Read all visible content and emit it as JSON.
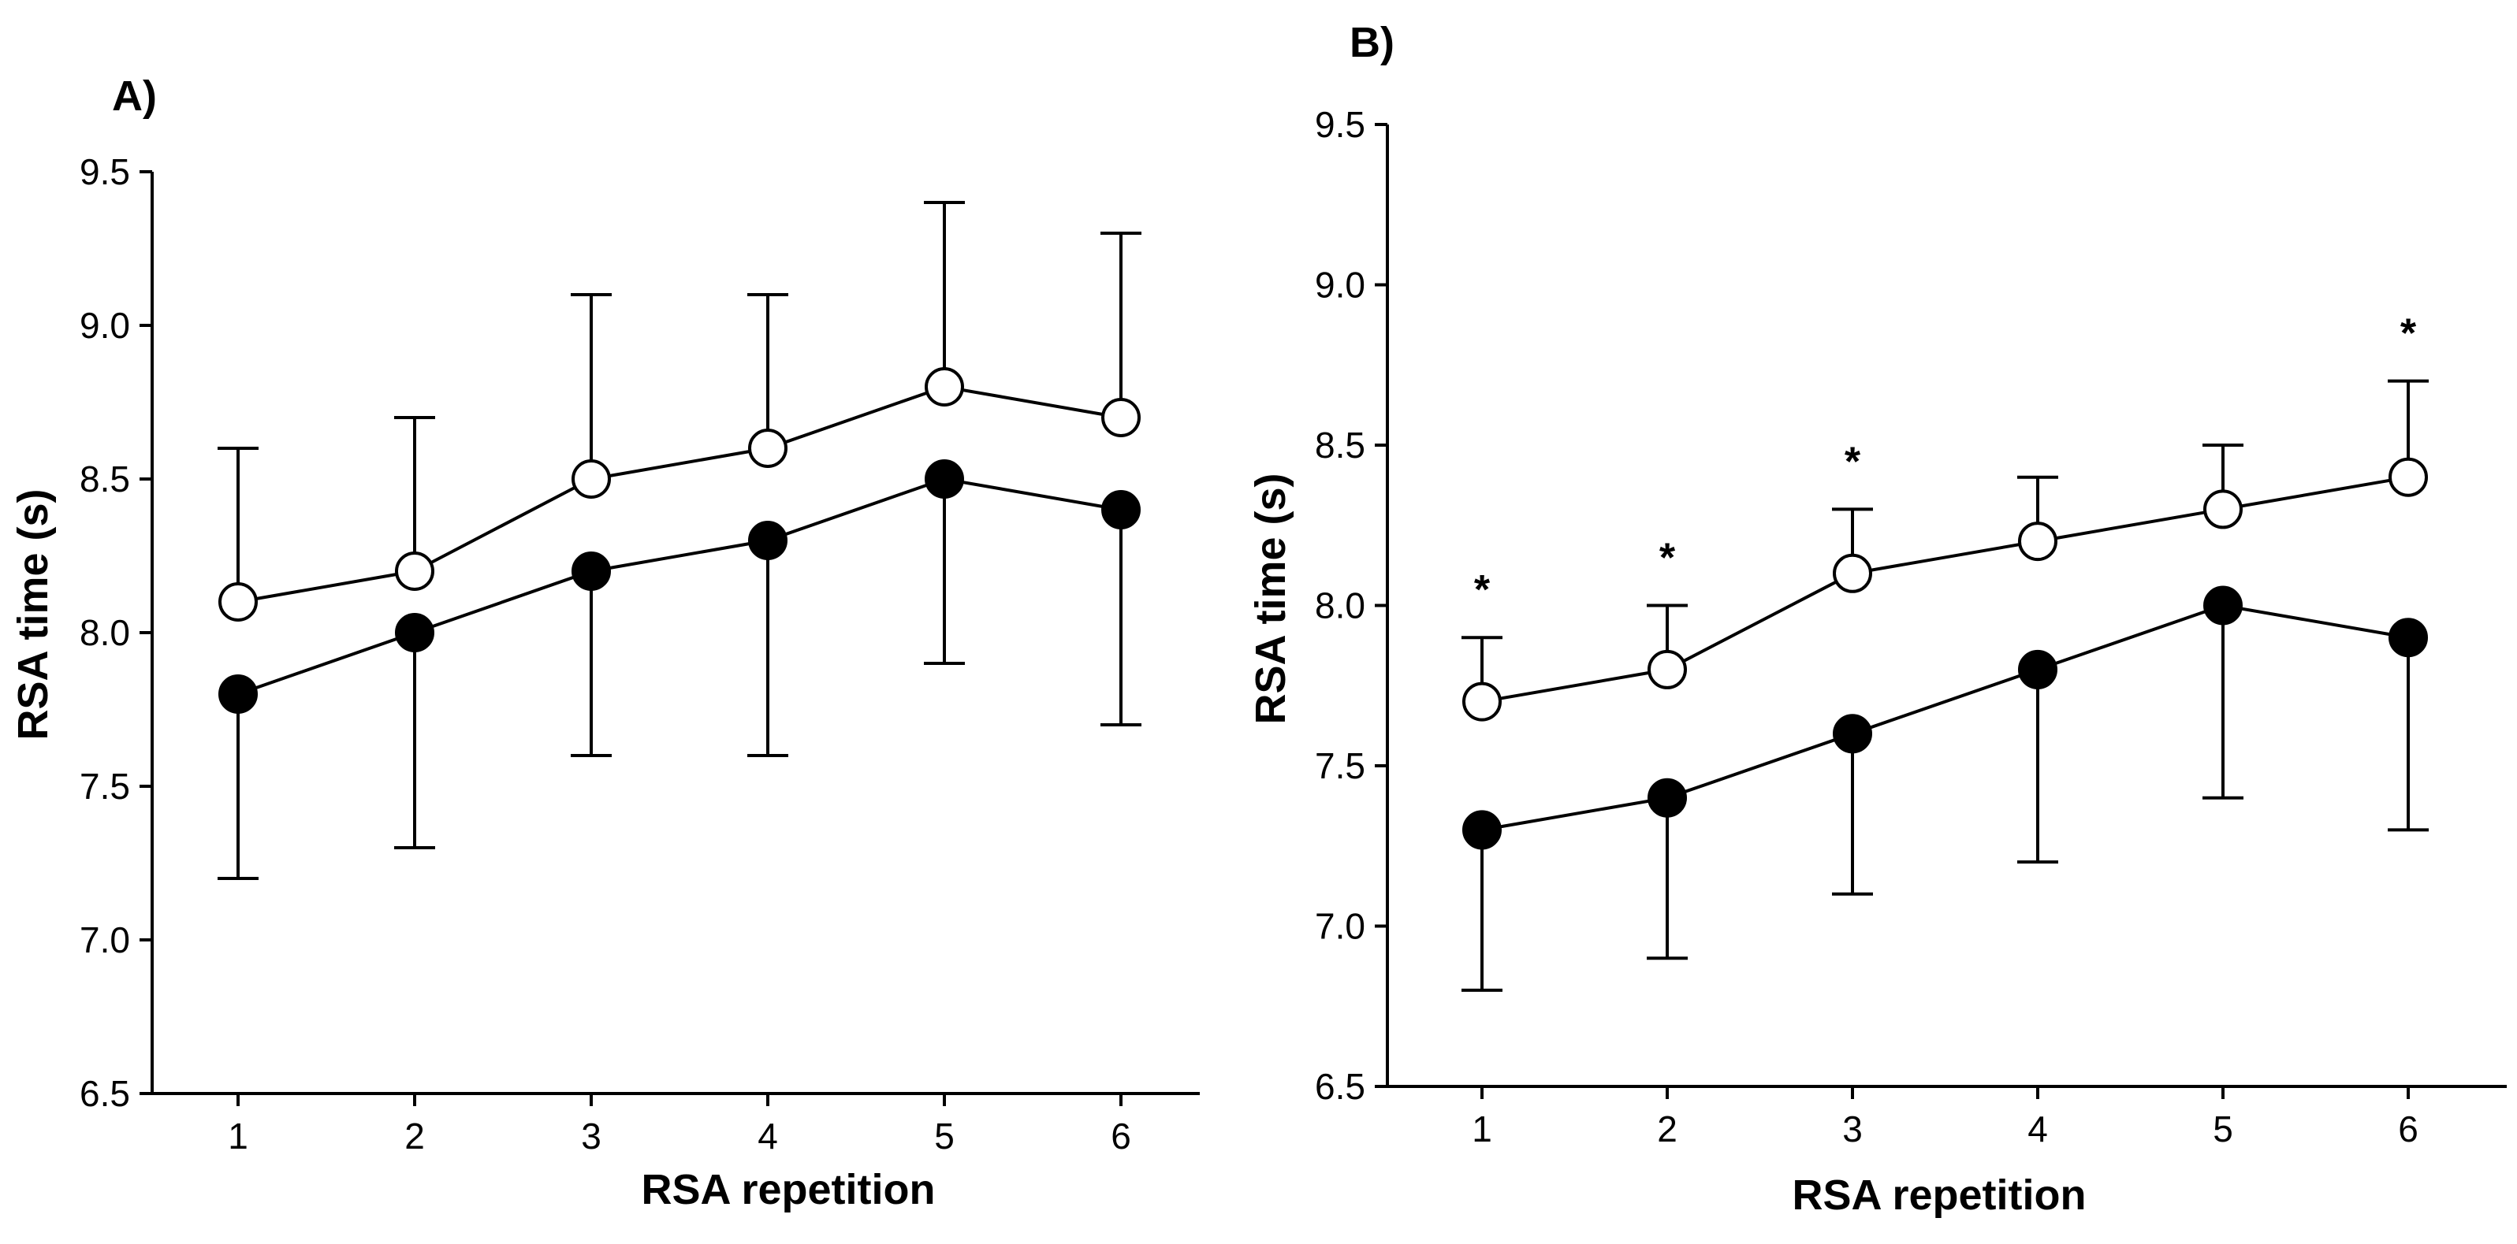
{
  "chart_data": [
    {
      "type": "line",
      "panel_label": "A)",
      "xlabel": "RSA repetition",
      "ylabel": "RSA time (s)",
      "x": [
        1,
        2,
        3,
        4,
        5,
        6
      ],
      "ylim": [
        6.5,
        9.5
      ],
      "yticks": [
        "6.5",
        "7.0",
        "7.5",
        "8.0",
        "8.5",
        "9.0",
        "9.5"
      ],
      "xticks": [
        "1",
        "2",
        "3",
        "4",
        "5",
        "6"
      ],
      "grid": false,
      "series": [
        {
          "name": "open circles",
          "marker": "open",
          "values": [
            8.1,
            8.2,
            8.5,
            8.6,
            8.8,
            8.7
          ],
          "error_upper": [
            8.6,
            8.7,
            9.1,
            9.1,
            9.4,
            9.3
          ]
        },
        {
          "name": "filled circles",
          "marker": "filled",
          "values": [
            7.8,
            8.0,
            8.2,
            8.3,
            8.5,
            8.4
          ],
          "error_lower": [
            7.2,
            7.3,
            7.6,
            7.6,
            7.9,
            7.7
          ]
        }
      ],
      "annotations": []
    },
    {
      "type": "line",
      "panel_label": "B)",
      "xlabel": "RSA repetition",
      "ylabel": "RSA time (s)",
      "x": [
        1,
        2,
        3,
        4,
        5,
        6
      ],
      "ylim": [
        6.5,
        9.5
      ],
      "yticks": [
        "6.5",
        "7.0",
        "7.5",
        "8.0",
        "8.5",
        "9.0",
        "9.5"
      ],
      "xticks": [
        "1",
        "2",
        "3",
        "4",
        "5",
        "6"
      ],
      "grid": false,
      "series": [
        {
          "name": "open circles",
          "marker": "open",
          "values": [
            7.7,
            7.8,
            8.1,
            8.2,
            8.3,
            8.4
          ],
          "error_upper": [
            7.9,
            8.0,
            8.3,
            8.4,
            8.5,
            8.7
          ]
        },
        {
          "name": "filled circles",
          "marker": "filled",
          "values": [
            7.3,
            7.4,
            7.6,
            7.8,
            8.0,
            7.9
          ],
          "error_lower": [
            6.8,
            6.9,
            7.1,
            7.2,
            7.4,
            7.3
          ]
        }
      ],
      "annotations": [
        {
          "x": 1,
          "y": 8.05,
          "text": "*"
        },
        {
          "x": 2,
          "y": 8.15,
          "text": "*"
        },
        {
          "x": 3,
          "y": 8.45,
          "text": "*"
        },
        {
          "x": 6,
          "y": 8.85,
          "text": "*"
        }
      ]
    }
  ]
}
